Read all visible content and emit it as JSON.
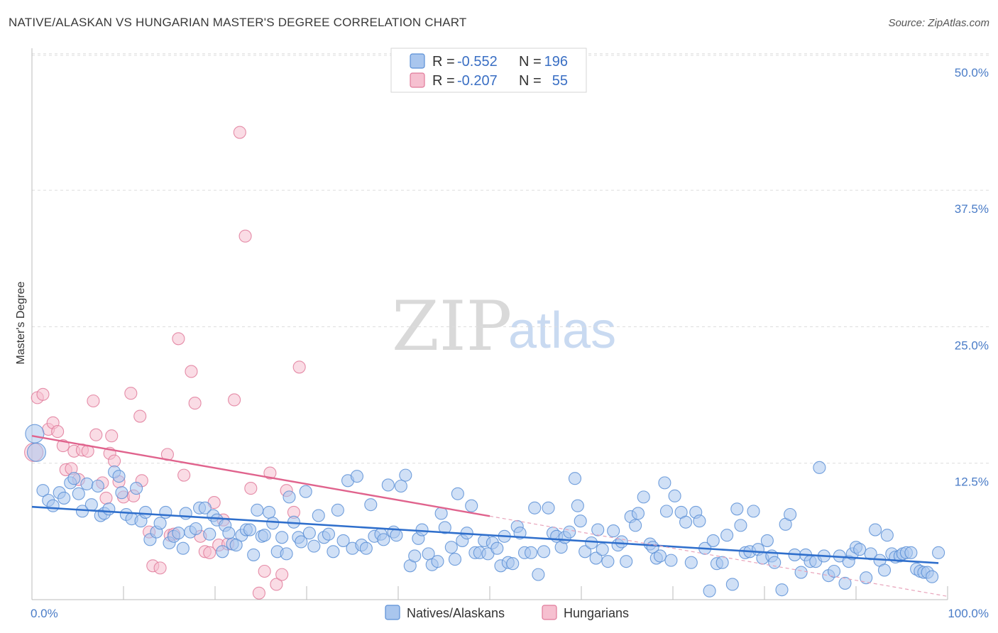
{
  "title": "NATIVE/ALASKAN VS HUNGARIAN MASTER'S DEGREE CORRELATION CHART",
  "source": "Source: ZipAtlas.com",
  "watermark": {
    "zip": "ZIP",
    "atlas": "atlas"
  },
  "legend": {
    "r_label": "R =",
    "n_label": "N =",
    "rows": [
      {
        "r": "-0.552",
        "n": "196",
        "color": "#5b8fd6",
        "fill": "#a9c6ee"
      },
      {
        "r": "-0.207",
        "n": "55",
        "color": "#e07a9a",
        "fill": "#f6c0d0"
      }
    ]
  },
  "bottom_legend": [
    "Natives/Alaskans",
    "Hungarians"
  ],
  "chart_data": {
    "type": "scatter",
    "title": "NATIVE/ALASKAN VS HUNGARIAN MASTER'S DEGREE CORRELATION CHART",
    "xlabel": "",
    "ylabel": "Master's Degree",
    "xlim": [
      0,
      100
    ],
    "ylim": [
      0,
      52
    ],
    "x_tick_labels": [
      "0.0%",
      "100.0%"
    ],
    "y_ticks": [
      12.5,
      25.0,
      37.5,
      50.0
    ],
    "y_tick_labels": [
      "12.5%",
      "25.0%",
      "37.5%",
      "50.0%"
    ],
    "grid": "horizontal dashed",
    "legend_position": "top-center",
    "series": [
      {
        "name": "Natives/Alaskans",
        "color": "#5b8fd6",
        "fill": "#a9c6ee",
        "trend": {
          "x": [
            0,
            100
          ],
          "y": [
            8.5,
            3.3
          ]
        },
        "points": [
          [
            0.3,
            15.2
          ],
          [
            0.5,
            13.5
          ],
          [
            1.2,
            10.0
          ],
          [
            1.8,
            9.1
          ],
          [
            2.3,
            8.6
          ],
          [
            3.0,
            9.8
          ],
          [
            3.5,
            9.3
          ],
          [
            4.2,
            10.7
          ],
          [
            4.6,
            11.1
          ],
          [
            5.1,
            9.7
          ],
          [
            5.5,
            8.1
          ],
          [
            6.0,
            10.6
          ],
          [
            6.5,
            8.7
          ],
          [
            7.2,
            10.4
          ],
          [
            7.5,
            7.7
          ],
          [
            7.9,
            7.9
          ],
          [
            8.4,
            8.3
          ],
          [
            9.0,
            11.7
          ],
          [
            9.5,
            11.3
          ],
          [
            9.8,
            9.8
          ],
          [
            10.3,
            7.8
          ],
          [
            10.9,
            7.4
          ],
          [
            11.4,
            10.2
          ],
          [
            11.9,
            7.2
          ],
          [
            12.4,
            8.0
          ],
          [
            12.9,
            5.5
          ],
          [
            13.6,
            6.2
          ],
          [
            14.0,
            7.0
          ],
          [
            14.6,
            8.0
          ],
          [
            15.0,
            5.2
          ],
          [
            15.5,
            5.8
          ],
          [
            16.0,
            6.1
          ],
          [
            16.5,
            4.7
          ],
          [
            16.8,
            7.9
          ],
          [
            17.3,
            6.2
          ],
          [
            17.9,
            6.5
          ],
          [
            18.3,
            8.4
          ],
          [
            18.9,
            8.4
          ],
          [
            19.4,
            6.0
          ],
          [
            19.8,
            7.7
          ],
          [
            20.2,
            7.3
          ],
          [
            20.8,
            4.4
          ],
          [
            21.1,
            6.8
          ],
          [
            21.5,
            6.1
          ],
          [
            21.9,
            5.1
          ],
          [
            22.3,
            5.0
          ],
          [
            22.9,
            5.9
          ],
          [
            23.4,
            6.4
          ],
          [
            23.8,
            6.4
          ],
          [
            24.2,
            4.1
          ],
          [
            24.6,
            8.2
          ],
          [
            25.1,
            5.8
          ],
          [
            25.4,
            5.9
          ],
          [
            25.9,
            8.0
          ],
          [
            26.3,
            7.0
          ],
          [
            26.8,
            4.4
          ],
          [
            27.3,
            5.7
          ],
          [
            27.8,
            4.2
          ],
          [
            28.1,
            9.4
          ],
          [
            28.6,
            7.1
          ],
          [
            29.1,
            5.7
          ],
          [
            29.4,
            5.3
          ],
          [
            29.9,
            9.9
          ],
          [
            30.3,
            6.1
          ],
          [
            30.8,
            4.9
          ],
          [
            31.3,
            7.7
          ],
          [
            31.9,
            5.7
          ],
          [
            32.4,
            6.0
          ],
          [
            32.9,
            4.4
          ],
          [
            33.4,
            8.2
          ],
          [
            34.0,
            5.4
          ],
          [
            34.5,
            10.9
          ],
          [
            35.0,
            4.7
          ],
          [
            35.5,
            11.3
          ],
          [
            36.0,
            5.0
          ],
          [
            36.5,
            4.7
          ],
          [
            37.0,
            8.7
          ],
          [
            37.4,
            5.8
          ],
          [
            38.1,
            6.0
          ],
          [
            38.4,
            5.5
          ],
          [
            38.9,
            10.5
          ],
          [
            39.5,
            6.2
          ],
          [
            39.8,
            5.9
          ],
          [
            40.3,
            10.4
          ],
          [
            40.8,
            11.4
          ],
          [
            41.3,
            3.1
          ],
          [
            41.8,
            4.0
          ],
          [
            42.2,
            5.6
          ],
          [
            42.6,
            6.4
          ],
          [
            43.3,
            4.2
          ],
          [
            43.7,
            3.2
          ],
          [
            44.3,
            3.5
          ],
          [
            44.7,
            7.9
          ],
          [
            45.1,
            6.6
          ],
          [
            45.8,
            4.8
          ],
          [
            46.2,
            3.7
          ],
          [
            46.5,
            9.7
          ],
          [
            47.0,
            5.4
          ],
          [
            47.5,
            6.1
          ],
          [
            48.0,
            8.6
          ],
          [
            48.4,
            4.3
          ],
          [
            48.9,
            4.3
          ],
          [
            49.4,
            5.4
          ],
          [
            49.8,
            4.2
          ],
          [
            50.3,
            5.2
          ],
          [
            50.8,
            4.7
          ],
          [
            51.2,
            3.1
          ],
          [
            51.6,
            5.8
          ],
          [
            52.0,
            3.4
          ],
          [
            52.5,
            3.3
          ],
          [
            53.0,
            6.7
          ],
          [
            53.3,
            6.1
          ],
          [
            53.8,
            4.3
          ],
          [
            54.5,
            4.3
          ],
          [
            54.9,
            8.4
          ],
          [
            55.3,
            2.3
          ],
          [
            55.9,
            4.4
          ],
          [
            56.4,
            8.4
          ],
          [
            56.9,
            6.1
          ],
          [
            57.3,
            5.8
          ],
          [
            57.8,
            4.8
          ],
          [
            58.2,
            5.7
          ],
          [
            58.7,
            6.2
          ],
          [
            59.3,
            11.1
          ],
          [
            59.6,
            8.6
          ],
          [
            59.9,
            7.2
          ],
          [
            60.4,
            4.4
          ],
          [
            61.1,
            5.2
          ],
          [
            61.6,
            3.8
          ],
          [
            61.8,
            6.4
          ],
          [
            62.3,
            4.6
          ],
          [
            62.9,
            3.5
          ],
          [
            63.5,
            6.3
          ],
          [
            64.0,
            5.0
          ],
          [
            64.4,
            5.3
          ],
          [
            64.9,
            3.5
          ],
          [
            65.4,
            7.6
          ],
          [
            65.9,
            6.8
          ],
          [
            66.2,
            7.9
          ],
          [
            66.8,
            9.4
          ],
          [
            67.5,
            5.1
          ],
          [
            67.8,
            4.8
          ],
          [
            68.2,
            3.8
          ],
          [
            68.6,
            4.0
          ],
          [
            69.1,
            10.7
          ],
          [
            69.3,
            8.1
          ],
          [
            69.8,
            3.6
          ],
          [
            70.2,
            9.5
          ],
          [
            70.9,
            8.0
          ],
          [
            71.4,
            7.1
          ],
          [
            72.0,
            3.4
          ],
          [
            72.5,
            8.0
          ],
          [
            72.9,
            7.2
          ],
          [
            73.5,
            4.7
          ],
          [
            74.0,
            0.8
          ],
          [
            74.4,
            5.4
          ],
          [
            74.8,
            3.3
          ],
          [
            75.4,
            3.4
          ],
          [
            75.9,
            5.9
          ],
          [
            76.5,
            1.4
          ],
          [
            77.0,
            8.3
          ],
          [
            77.4,
            6.8
          ],
          [
            77.9,
            4.3
          ],
          [
            78.4,
            4.4
          ],
          [
            78.8,
            8.1
          ],
          [
            79.3,
            4.6
          ],
          [
            79.8,
            3.8
          ],
          [
            80.3,
            5.4
          ],
          [
            80.8,
            4.0
          ],
          [
            81.1,
            3.4
          ],
          [
            81.9,
            0.9
          ],
          [
            82.3,
            6.9
          ],
          [
            82.8,
            7.8
          ],
          [
            83.3,
            4.1
          ],
          [
            84.0,
            2.5
          ],
          [
            84.5,
            4.1
          ],
          [
            85.0,
            3.5
          ],
          [
            85.6,
            3.5
          ],
          [
            86.0,
            12.1
          ],
          [
            86.5,
            4.0
          ],
          [
            87.0,
            2.2
          ],
          [
            87.6,
            2.6
          ],
          [
            88.2,
            4.0
          ],
          [
            88.8,
            1.5
          ],
          [
            89.2,
            3.5
          ],
          [
            89.6,
            4.2
          ],
          [
            90.0,
            4.8
          ],
          [
            90.4,
            4.6
          ],
          [
            91.1,
            2.0
          ],
          [
            91.6,
            4.2
          ],
          [
            92.1,
            6.4
          ],
          [
            92.6,
            3.6
          ],
          [
            93.1,
            2.7
          ],
          [
            93.4,
            5.9
          ],
          [
            93.9,
            4.2
          ],
          [
            94.3,
            3.9
          ],
          [
            94.8,
            4.0
          ],
          [
            95.1,
            4.2
          ],
          [
            95.5,
            4.3
          ],
          [
            96.0,
            4.3
          ],
          [
            96.6,
            2.8
          ],
          [
            97.0,
            2.6
          ],
          [
            97.4,
            2.5
          ],
          [
            97.8,
            2.5
          ],
          [
            98.3,
            2.1
          ],
          [
            99.0,
            4.3
          ]
        ]
      },
      {
        "name": "Hungarians",
        "color": "#e07a9a",
        "fill": "#f6c0d0",
        "trend": {
          "x": [
            0,
            100
          ],
          "y": [
            15.0,
            0.3
          ]
        },
        "points": [
          [
            0.2,
            13.5
          ],
          [
            0.6,
            18.5
          ],
          [
            1.2,
            18.8
          ],
          [
            1.8,
            15.6
          ],
          [
            2.3,
            16.2
          ],
          [
            2.8,
            15.4
          ],
          [
            3.4,
            14.1
          ],
          [
            3.7,
            11.9
          ],
          [
            4.3,
            12.0
          ],
          [
            4.6,
            13.6
          ],
          [
            5.1,
            11.0
          ],
          [
            5.5,
            13.7
          ],
          [
            6.1,
            13.6
          ],
          [
            6.7,
            18.2
          ],
          [
            7.0,
            15.1
          ],
          [
            7.7,
            10.7
          ],
          [
            8.1,
            9.3
          ],
          [
            8.7,
            15.0
          ],
          [
            8.5,
            13.4
          ],
          [
            9.0,
            12.7
          ],
          [
            9.5,
            10.8
          ],
          [
            10.0,
            9.4
          ],
          [
            10.8,
            18.9
          ],
          [
            11.1,
            9.5
          ],
          [
            11.8,
            16.8
          ],
          [
            12.0,
            10.9
          ],
          [
            12.8,
            6.2
          ],
          [
            13.2,
            3.1
          ],
          [
            14.0,
            2.9
          ],
          [
            14.8,
            13.3
          ],
          [
            15.1,
            5.9
          ],
          [
            15.5,
            6.0
          ],
          [
            16.0,
            23.9
          ],
          [
            16.6,
            11.4
          ],
          [
            17.4,
            20.9
          ],
          [
            17.8,
            18.0
          ],
          [
            18.4,
            5.8
          ],
          [
            18.9,
            4.4
          ],
          [
            19.4,
            4.3
          ],
          [
            19.9,
            8.9
          ],
          [
            20.4,
            5.0
          ],
          [
            20.9,
            7.3
          ],
          [
            21.4,
            5.1
          ],
          [
            22.1,
            18.3
          ],
          [
            22.7,
            42.8
          ],
          [
            23.3,
            33.3
          ],
          [
            23.9,
            10.2
          ],
          [
            24.8,
            0.6
          ],
          [
            25.4,
            2.6
          ],
          [
            26.0,
            11.6
          ],
          [
            26.7,
            1.4
          ],
          [
            27.3,
            2.3
          ],
          [
            27.8,
            10.0
          ],
          [
            28.6,
            8.0
          ],
          [
            29.2,
            21.3
          ]
        ]
      }
    ]
  }
}
